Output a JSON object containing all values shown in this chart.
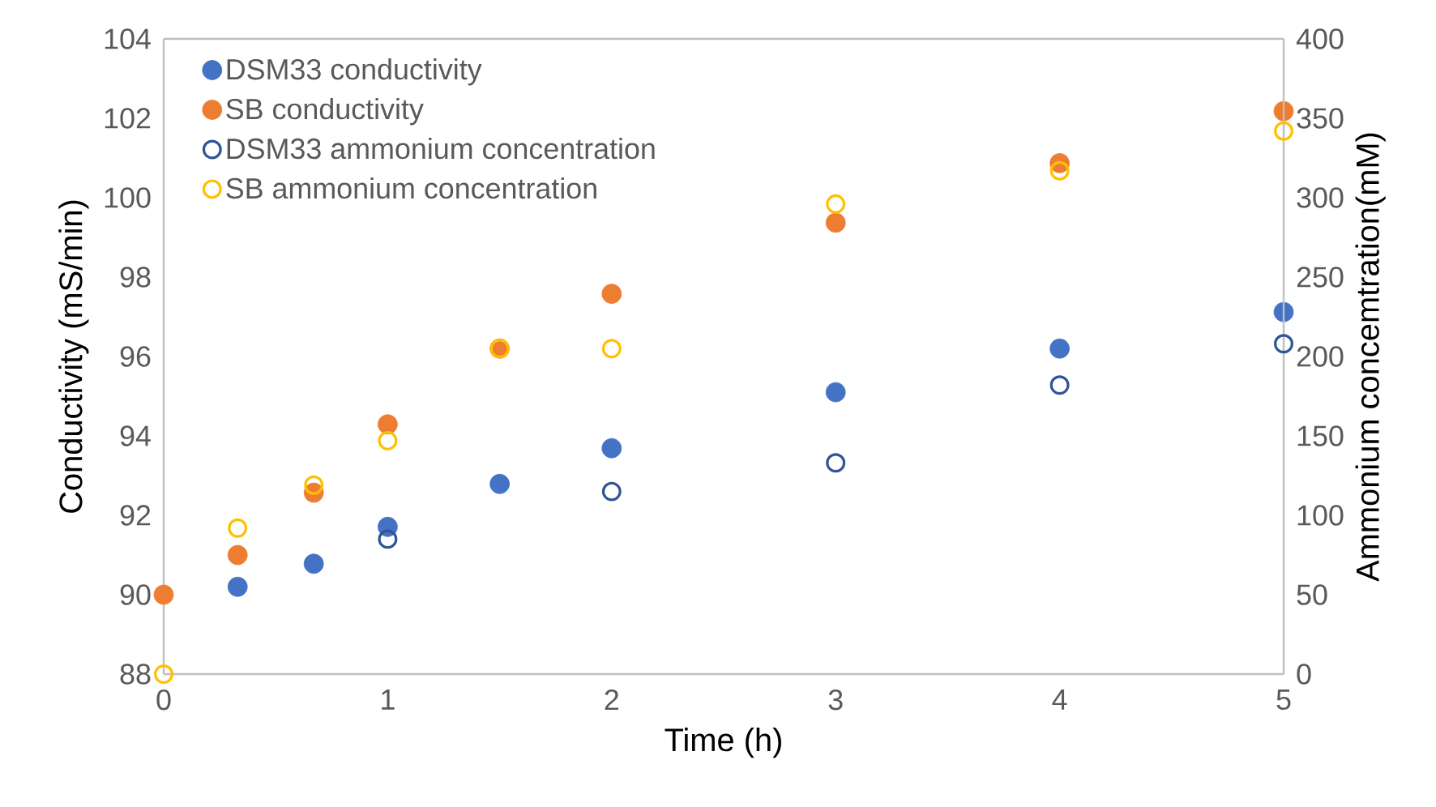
{
  "chart_data": {
    "type": "scatter",
    "xlabel": "Time (h)",
    "ylabel": "Conductivity (mS/min)",
    "y2label": "Ammonium concemtration(mM)",
    "x": [
      0,
      0.33,
      0.67,
      1,
      1.5,
      2,
      3,
      4,
      5
    ],
    "series": [
      {
        "name": "DSM33 conductivity",
        "color": "#4472c4",
        "values": [
          null,
          90.2,
          90.78,
          91.71,
          92.79,
          93.69,
          95.1,
          96.2,
          97.12
        ]
      },
      {
        "name": "SB conductivity",
        "color": "#ed7d31",
        "values": [
          90.0,
          91.0,
          92.57,
          94.29,
          96.2,
          97.58,
          99.37,
          100.87,
          102.18
        ]
      },
      {
        "name": "DSM33 ammonium concentration",
        "color": "#2f5597",
        "axis": "y2",
        "values": [
          null,
          null,
          null,
          85,
          null,
          115,
          133,
          182,
          208
        ]
      },
      {
        "name": "SB ammonium concentration",
        "color": "#ffc000",
        "axis": "y2",
        "values": [
          0,
          92,
          119,
          147,
          205,
          205,
          296,
          317,
          342
        ]
      }
    ],
    "xlim": [
      0,
      5
    ],
    "xticks": [
      0,
      1,
      2,
      3,
      4,
      5
    ],
    "ylim": [
      88,
      104
    ],
    "yticks": [
      88,
      90,
      92,
      94,
      96,
      98,
      100,
      102,
      104
    ],
    "y2lim": [
      0,
      400
    ],
    "y2ticks": [
      0,
      50,
      100,
      150,
      200,
      250,
      300,
      350,
      400
    ],
    "marker": "circle",
    "legend": "top left",
    "grid": false
  }
}
